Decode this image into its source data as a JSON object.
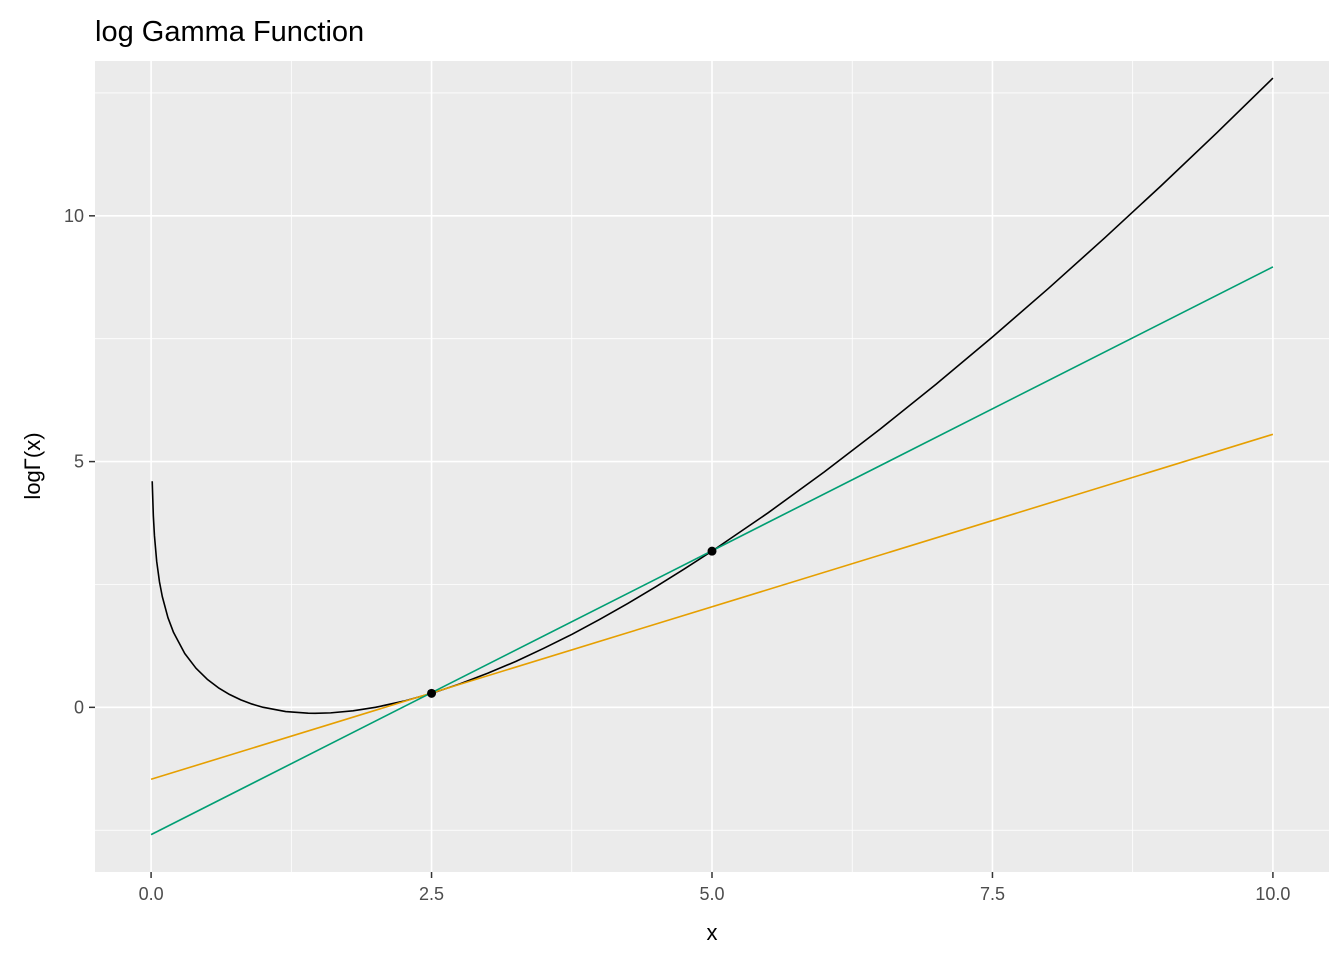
{
  "chart_data": {
    "type": "line",
    "title": "log Gamma Function",
    "xlabel": "x",
    "ylabel": "logΓ(x)",
    "xlim": [
      -0.5,
      10.5
    ],
    "ylim": [
      -3.35,
      13.15
    ],
    "x_ticks": [
      0.0,
      2.5,
      5.0,
      7.5,
      10.0
    ],
    "x_tick_labels": [
      "0.0",
      "2.5",
      "5.0",
      "7.5",
      "10.0"
    ],
    "y_ticks": [
      0,
      5,
      10
    ],
    "y_tick_labels": [
      "0",
      "5",
      "10"
    ],
    "grid": true,
    "legend": "none",
    "series": [
      {
        "color": "#000000",
        "x": [
          0.01,
          0.02,
          0.03,
          0.05,
          0.075,
          0.1,
          0.15,
          0.2,
          0.3,
          0.4,
          0.5,
          0.6,
          0.7,
          0.8,
          0.9,
          1.0,
          1.2,
          1.4,
          1.461632,
          1.6,
          1.8,
          2.0,
          2.25,
          2.5,
          2.75,
          3.0,
          3.25,
          3.5,
          3.75,
          4.0,
          4.25,
          4.5,
          4.75,
          5.0,
          5.5,
          6.0,
          6.5,
          7.0,
          7.5,
          8.0,
          8.5,
          9.0,
          9.5,
          10.0
        ],
        "values": [
          4.5995,
          3.9003,
          3.4892,
          2.9682,
          2.5497,
          2.2527,
          1.8262,
          1.5241,
          1.0958,
          0.7967,
          0.5724,
          0.3982,
          0.2609,
          0.1521,
          0.0663,
          0.0,
          -0.0854,
          -0.1196,
          -0.1215,
          -0.1125,
          -0.071,
          0.0,
          0.1248,
          0.2847,
          0.476,
          0.6931,
          0.933,
          1.201,
          1.4839,
          1.7918,
          2.1144,
          2.4537,
          2.8101,
          3.1781,
          3.9578,
          4.7875,
          5.6625,
          6.5793,
          7.5343,
          8.5252,
          9.5498,
          10.6046,
          11.6893,
          12.8018
        ]
      },
      {
        "color": "#E69F00",
        "x": [
          0.0,
          10.0
        ],
        "values": [
          -1.4633,
          5.5551
        ]
      },
      {
        "color": "#009E73",
        "x": [
          0.0,
          10.0
        ],
        "values": [
          -2.5901,
          8.9615
        ]
      }
    ],
    "points": {
      "color": "#000000",
      "x": [
        2.5,
        5.0
      ],
      "values": [
        0.2847,
        3.1781
      ]
    }
  }
}
